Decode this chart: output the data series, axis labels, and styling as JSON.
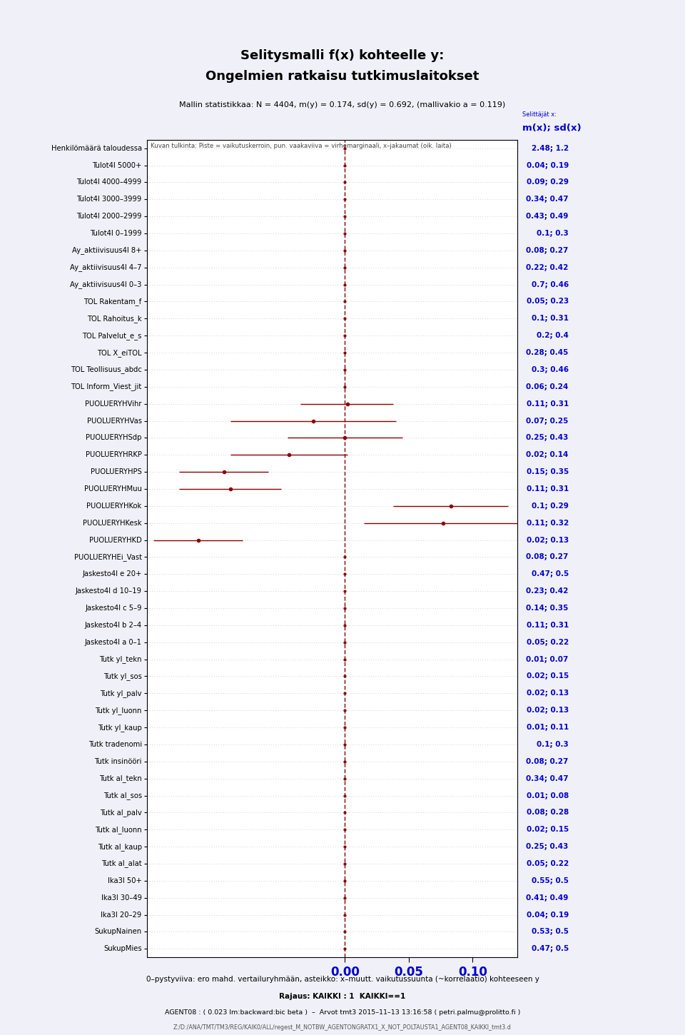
{
  "title1": "Selitysmalli f(x) kohteelle y:",
  "title2": "Ongelmien ratkaisu tutkimuslaitokset",
  "stats_line": "Mallin statistikkaa: N = 4404, m(y) = 0.174, sd(y) = 0.692, (mallivakio a = 0.119)",
  "interpretation": "Kuvan tulkinta: Piste = vaikutuskerroin, pun. vaakaviiva = virhemarginaali, x–jakaumat (oik. laita)",
  "footer1": "0–pystyviiva: ero mahd. vertailuryhmään, asteikko: x–muutt. vaikutussuunta (~korrelaatio) kohteeseen y",
  "footer2": "Rajaus: KAIKKI : 1  KAIKKI==1",
  "footer3": "AGENT08 : ( 0.023 lm:backward:bic beta )  –  Arvot tmt3 2015–11–13 13:16:58 ( petri.palmu@prolitto.fi )",
  "footer4": "Z:/D:/ANA/TMT/TM3/REG/KAIK0/ALL/regest_M_NOTBW_AGENTONGRATX1_X_NOT_POLTAUSTA1_AGENT08_KAIKKI_tmt3.d",
  "labels": [
    "Henkilömäärä taloudessa",
    "Tulot4I 5000+",
    "Tulot4I 4000–4999",
    "Tulot4I 3000–3999",
    "Tulot4I 2000–2999",
    "Tulot4I 0–1999",
    "Ay_aktiivisuus4I 8+",
    "Ay_aktiivisuus4I 4–7",
    "Ay_aktiivisuus4I 0–3",
    "TOL Rakentam_f",
    "TOL Rahoitus_k",
    "TOL Palvelut_e_s",
    "TOL X_eiTOL",
    "TOL Teollisuus_abdc",
    "TOL Inform_Viest_jit",
    "PUOLUERYHVihr",
    "PUOLUERYHVas",
    "PUOLUERYHSdp",
    "PUOLUERYHRKP",
    "PUOLUERYHPS",
    "PUOLUERYHMuu",
    "PUOLUERYHKok",
    "PUOLUERYHKesk",
    "PUOLUERYHKD",
    "PUOLUERYHEi_Vast",
    "Jaskesto4I e 20+",
    "Jaskesto4I d 10–19",
    "Jaskesto4I c 5–9",
    "Jaskesto4I b 2–4",
    "Jaskesto4I a 0–1",
    "Tutk yl_tekn",
    "Tutk yl_sos",
    "Tutk yl_palv",
    "Tutk yl_luonn",
    "Tutk yl_kaup",
    "Tutk tradenomi",
    "Tutk insinööri",
    "Tutk al_tekn",
    "Tutk al_sos",
    "Tutk al_palv",
    "Tutk al_luonn",
    "Tutk al_kaup",
    "Tutk al_alat",
    "Ika3I 50+",
    "Ika3I 30–49",
    "Ika3I 20–29",
    "SukupNainen",
    "SukupMies"
  ],
  "mx": [
    2.48,
    0.04,
    0.09,
    0.34,
    0.43,
    0.1,
    0.08,
    0.22,
    0.7,
    0.05,
    0.1,
    0.2,
    0.28,
    0.3,
    0.06,
    0.11,
    0.07,
    0.25,
    0.02,
    0.15,
    0.11,
    0.1,
    0.11,
    0.02,
    0.08,
    0.47,
    0.23,
    0.14,
    0.11,
    0.05,
    0.01,
    0.02,
    0.02,
    0.02,
    0.01,
    0.1,
    0.08,
    0.34,
    0.01,
    0.08,
    0.02,
    0.25,
    0.05,
    0.55,
    0.41,
    0.04,
    0.53,
    0.47
  ],
  "sdx": [
    1.2,
    0.19,
    0.29,
    0.47,
    0.49,
    0.3,
    0.27,
    0.42,
    0.46,
    0.23,
    0.31,
    0.4,
    0.45,
    0.46,
    0.24,
    0.31,
    0.25,
    0.43,
    0.14,
    0.35,
    0.31,
    0.29,
    0.32,
    0.13,
    0.27,
    0.5,
    0.42,
    0.35,
    0.31,
    0.22,
    0.07,
    0.15,
    0.13,
    0.13,
    0.11,
    0.3,
    0.27,
    0.47,
    0.08,
    0.28,
    0.15,
    0.43,
    0.22,
    0.5,
    0.49,
    0.19,
    0.5,
    0.5
  ],
  "coefficients": [
    0.0,
    0.0,
    0.0,
    0.0,
    0.0,
    0.0,
    0.0,
    0.0,
    0.0,
    0.0,
    0.0,
    0.0,
    0.0,
    0.0,
    0.0,
    0.002,
    -0.025,
    0.0,
    -0.044,
    -0.095,
    -0.09,
    0.083,
    0.077,
    -0.115,
    0.0,
    0.0,
    0.0,
    0.0,
    0.0,
    0.0,
    0.0,
    0.0,
    0.0,
    0.0,
    0.0,
    0.0,
    0.0,
    0.0,
    0.0,
    0.0,
    0.0,
    0.0,
    0.0,
    0.0,
    0.0,
    0.0,
    0.0,
    0.0
  ],
  "has_errorbar": [
    false,
    false,
    false,
    false,
    false,
    false,
    false,
    false,
    false,
    false,
    false,
    false,
    false,
    false,
    false,
    true,
    true,
    true,
    true,
    true,
    true,
    true,
    true,
    true,
    false,
    false,
    false,
    false,
    false,
    false,
    false,
    false,
    false,
    false,
    false,
    false,
    false,
    false,
    false,
    false,
    false,
    false,
    false,
    false,
    false,
    false,
    false,
    false
  ],
  "errorbar_low": [
    0.0,
    0.0,
    0.0,
    0.0,
    0.0,
    0.0,
    0.0,
    0.0,
    0.0,
    0.0,
    0.0,
    0.0,
    0.0,
    0.0,
    0.0,
    -0.035,
    -0.09,
    -0.045,
    -0.09,
    -0.13,
    -0.13,
    0.038,
    0.015,
    -0.15,
    0.0,
    0.0,
    0.0,
    0.0,
    0.0,
    0.0,
    0.0,
    0.0,
    0.0,
    0.0,
    0.0,
    0.0,
    0.0,
    0.0,
    0.0,
    0.0,
    0.0,
    0.0,
    0.0,
    0.0,
    0.0,
    0.0,
    0.0,
    0.0
  ],
  "errorbar_high": [
    0.0,
    0.0,
    0.0,
    0.0,
    0.0,
    0.0,
    0.0,
    0.0,
    0.0,
    0.0,
    0.0,
    0.0,
    0.0,
    0.0,
    0.0,
    0.038,
    0.04,
    0.045,
    0.002,
    -0.06,
    -0.05,
    0.128,
    0.14,
    -0.08,
    0.0,
    0.0,
    0.0,
    0.0,
    0.0,
    0.0,
    0.0,
    0.0,
    0.0,
    0.0,
    0.0,
    0.0,
    0.0,
    0.0,
    0.0,
    0.0,
    0.0,
    0.0,
    0.0,
    0.0,
    0.0,
    0.0,
    0.0,
    0.0
  ],
  "xlim": [
    -0.155,
    0.135
  ],
  "xticks": [
    0.0,
    0.05,
    0.1
  ],
  "xticklabels": [
    "0.00",
    "0.05",
    "0.10"
  ],
  "bg_color": "#f0f0f8",
  "plot_bg_color": "#ffffff",
  "dot_color": "#8b0000",
  "line_color": "#8b0000",
  "text_color": "#0000cd",
  "grid_color": "#c0c0d8"
}
